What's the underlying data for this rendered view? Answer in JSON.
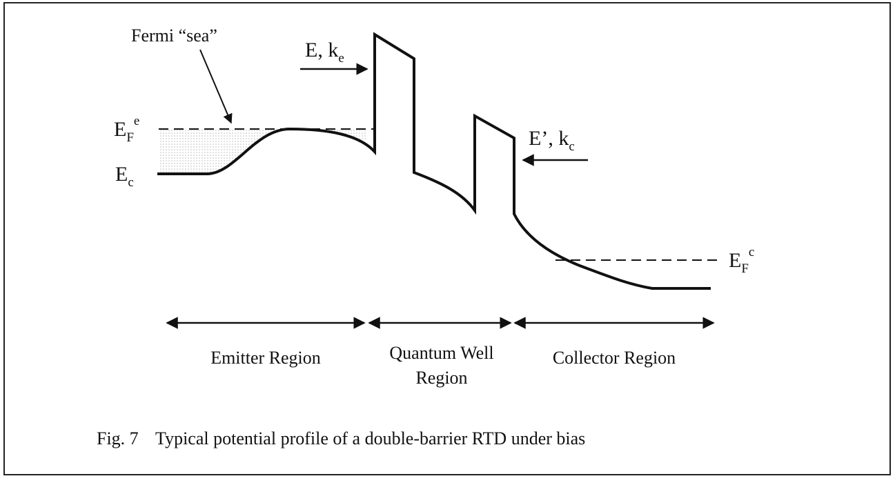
{
  "labels": {
    "fermi_sea": "Fermi “sea”",
    "incident": {
      "text": "E, k",
      "sub": "e"
    },
    "emitter_fermi": {
      "text": "E",
      "sub": "F",
      "sup": "e"
    },
    "conduction": {
      "text": "E",
      "sub": "c"
    },
    "transmitted": {
      "text": "E’, k",
      "sub": "c"
    },
    "collector_fermi": {
      "text": "E",
      "sub": "F",
      "sup": "c"
    }
  },
  "regions": {
    "emitter": "Emitter Region",
    "quantum_well": [
      "Quantum Well",
      "Region"
    ],
    "collector": "Collector Region"
  },
  "caption": {
    "number": "Fig. 7",
    "text": "Typical potential profile of a double-barrier RTD under bias"
  }
}
